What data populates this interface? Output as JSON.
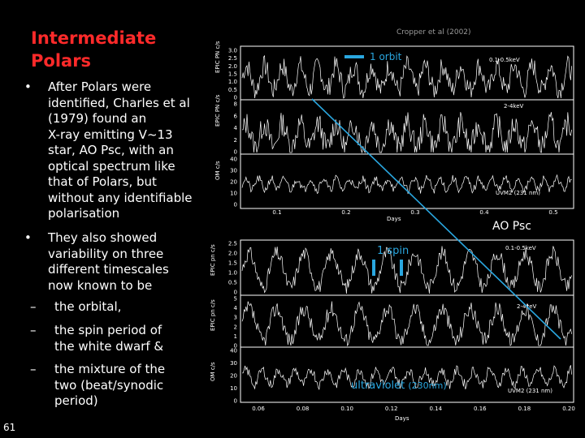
{
  "slide": {
    "title_line1": "Intermediate",
    "title_line2": "Polars",
    "bullet1": [
      "After Polars were",
      "identified, Charles et al",
      "(1979) found an",
      "X-ray emitting V~13",
      "star, AO Psc, with an",
      "optical spectrum like",
      "that of Polars, but",
      "without any identifiable",
      "polarisation"
    ],
    "bullet2": [
      "They also showed",
      "variability on three",
      "different timescales",
      "now known to be"
    ],
    "sub1": [
      "the orbital,"
    ],
    "sub2": [
      "the spin period of",
      "the white dwarf &"
    ],
    "sub3": [
      "the mixture of the",
      "two (beat/synodic",
      "period)"
    ],
    "slide_number": "61",
    "credit": "Cropper et al (2002)",
    "object_label": "AO Psc",
    "bullet_glyph": "•",
    "dash_glyph": "–"
  },
  "top_figure": {
    "orbit_label": "1 orbit",
    "x_label": "Days",
    "x_ticks": [
      "0.1",
      "0.2",
      "0.3",
      "0.4",
      "0.5"
    ],
    "panels": [
      {
        "ylabel": "EPIC PN c/s",
        "band": "0.1-0.5keV",
        "yticks": [
          "3.0",
          "2.5",
          "2.0",
          "1.5",
          "1.0",
          "0.5",
          "0"
        ]
      },
      {
        "ylabel": "EPIC PN c/s",
        "band": "2-4keV",
        "yticks": [
          "8",
          "6",
          "4",
          "2",
          "0"
        ]
      },
      {
        "ylabel": "OM c/s",
        "band": "UVM2 (231 nm)",
        "yticks": [
          "40",
          "30",
          "20",
          "10",
          "0"
        ]
      }
    ]
  },
  "bottom_figure": {
    "spin_label": "1 spin",
    "uv_label": "ultraviolet",
    "uv_wave": "(230nm)",
    "x_label": "Days",
    "x_ticks": [
      "0.06",
      "0.08",
      "0.10",
      "0.12",
      "0.14",
      "0.16",
      "0.18",
      "0.20"
    ],
    "panels": [
      {
        "ylabel": "EPIC pn c/s",
        "band": "0.1-0.5keV",
        "yticks": [
          "2.5",
          "2.0",
          "1.5",
          "1.0",
          "0.5",
          "0"
        ]
      },
      {
        "ylabel": "EPIC pn c/s",
        "band": "2-4keV",
        "yticks": [
          "5",
          "4",
          "3",
          "2",
          "1",
          "0"
        ]
      },
      {
        "ylabel": "OM c/s",
        "band": "UVM2 (231 nm)",
        "yticks": [
          "40",
          "30",
          "20",
          "10",
          "0"
        ]
      }
    ]
  },
  "colors": {
    "title": "#ff2a2a",
    "annotation": "#2aa7e0",
    "background": "#000000"
  }
}
